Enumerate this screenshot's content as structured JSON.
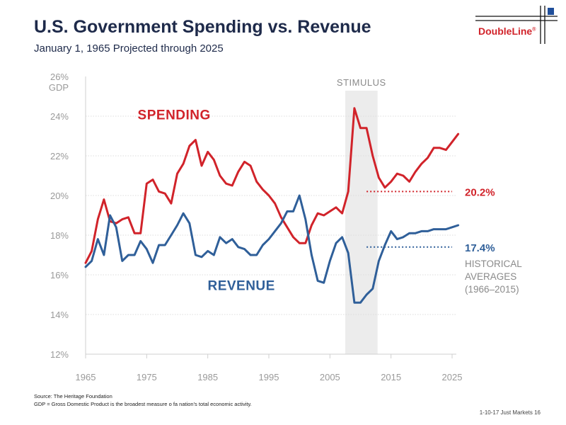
{
  "header": {
    "title": "U.S. Government Spending vs. Revenue",
    "subtitle": "January 1, 1965 Projected through 2025"
  },
  "logo": {
    "text": "DoubleLine",
    "mark": "®"
  },
  "footer": {
    "source": "Source: The Heritage Foundation",
    "gdp_note": "GDP = Gross Domestic Product is the broadest measure o fa nation's total economic activity.",
    "page_ref": "1-10-17 Just Markets  16"
  },
  "colors": {
    "spending": "#d1232a",
    "revenue": "#2f5f99",
    "axis_text": "#9a9a9a",
    "stimulus_band": "#ececec",
    "annotation_text": "#8a8a8a"
  },
  "chart_data": {
    "type": "line",
    "ylim": [
      12,
      26
    ],
    "xlim": [
      1965,
      2026
    ],
    "y_unit_label": "GDP",
    "y_ticks": [
      "26%",
      "24%",
      "22%",
      "20%",
      "18%",
      "16%",
      "14%",
      "12%"
    ],
    "x_ticks": [
      "1965",
      "1975",
      "1985",
      "1995",
      "2005",
      "2015",
      "2025"
    ],
    "grid": "horizontal",
    "series": [
      {
        "name": "SPENDING",
        "values": [
          [
            1965,
            16.6
          ],
          [
            1966,
            17.2
          ],
          [
            1967,
            18.8
          ],
          [
            1968,
            19.8
          ],
          [
            1969,
            18.7
          ],
          [
            1970,
            18.6
          ],
          [
            1971,
            18.8
          ],
          [
            1972,
            18.9
          ],
          [
            1973,
            18.1
          ],
          [
            1974,
            18.1
          ],
          [
            1975,
            20.6
          ],
          [
            1976,
            20.8
          ],
          [
            1977,
            20.2
          ],
          [
            1978,
            20.1
          ],
          [
            1979,
            19.6
          ],
          [
            1980,
            21.1
          ],
          [
            1981,
            21.6
          ],
          [
            1982,
            22.5
          ],
          [
            1983,
            22.8
          ],
          [
            1984,
            21.5
          ],
          [
            1985,
            22.2
          ],
          [
            1986,
            21.8
          ],
          [
            1987,
            21.0
          ],
          [
            1988,
            20.6
          ],
          [
            1989,
            20.5
          ],
          [
            1990,
            21.2
          ],
          [
            1991,
            21.7
          ],
          [
            1992,
            21.5
          ],
          [
            1993,
            20.7
          ],
          [
            1994,
            20.3
          ],
          [
            1995,
            20.0
          ],
          [
            1996,
            19.6
          ],
          [
            1997,
            18.9
          ],
          [
            1998,
            18.4
          ],
          [
            1999,
            17.9
          ],
          [
            2000,
            17.6
          ],
          [
            2001,
            17.6
          ],
          [
            2002,
            18.5
          ],
          [
            2003,
            19.1
          ],
          [
            2004,
            19.0
          ],
          [
            2005,
            19.2
          ],
          [
            2006,
            19.4
          ],
          [
            2007,
            19.1
          ],
          [
            2008,
            20.2
          ],
          [
            2009,
            24.4
          ],
          [
            2010,
            23.4
          ],
          [
            2011,
            23.4
          ],
          [
            2012,
            22.0
          ],
          [
            2013,
            20.9
          ],
          [
            2014,
            20.4
          ],
          [
            2015,
            20.7
          ],
          [
            2016,
            21.1
          ],
          [
            2017,
            21.0
          ],
          [
            2018,
            20.7
          ],
          [
            2019,
            21.2
          ],
          [
            2020,
            21.6
          ],
          [
            2021,
            21.9
          ],
          [
            2022,
            22.4
          ],
          [
            2023,
            22.4
          ],
          [
            2024,
            22.3
          ],
          [
            2025,
            22.7
          ],
          [
            2026,
            23.1
          ]
        ]
      },
      {
        "name": "REVENUE",
        "values": [
          [
            1965,
            16.4
          ],
          [
            1966,
            16.7
          ],
          [
            1967,
            17.8
          ],
          [
            1968,
            17.0
          ],
          [
            1969,
            19.0
          ],
          [
            1970,
            18.4
          ],
          [
            1971,
            16.7
          ],
          [
            1972,
            17.0
          ],
          [
            1973,
            17.0
          ],
          [
            1974,
            17.7
          ],
          [
            1975,
            17.3
          ],
          [
            1976,
            16.6
          ],
          [
            1977,
            17.5
          ],
          [
            1978,
            17.5
          ],
          [
            1979,
            18.0
          ],
          [
            1980,
            18.5
          ],
          [
            1981,
            19.1
          ],
          [
            1982,
            18.6
          ],
          [
            1983,
            17.0
          ],
          [
            1984,
            16.9
          ],
          [
            1985,
            17.2
          ],
          [
            1986,
            17.0
          ],
          [
            1987,
            17.9
          ],
          [
            1988,
            17.6
          ],
          [
            1989,
            17.8
          ],
          [
            1990,
            17.4
          ],
          [
            1991,
            17.3
          ],
          [
            1992,
            17.0
          ],
          [
            1993,
            17.0
          ],
          [
            1994,
            17.5
          ],
          [
            1995,
            17.8
          ],
          [
            1996,
            18.2
          ],
          [
            1997,
            18.6
          ],
          [
            1998,
            19.2
          ],
          [
            1999,
            19.2
          ],
          [
            2000,
            20.0
          ],
          [
            2001,
            18.8
          ],
          [
            2002,
            17.0
          ],
          [
            2003,
            15.7
          ],
          [
            2004,
            15.6
          ],
          [
            2005,
            16.7
          ],
          [
            2006,
            17.6
          ],
          [
            2007,
            17.9
          ],
          [
            2008,
            17.1
          ],
          [
            2009,
            14.6
          ],
          [
            2010,
            14.6
          ],
          [
            2011,
            15.0
          ],
          [
            2012,
            15.3
          ],
          [
            2013,
            16.7
          ],
          [
            2014,
            17.5
          ],
          [
            2015,
            18.2
          ],
          [
            2016,
            17.8
          ],
          [
            2017,
            17.9
          ],
          [
            2018,
            18.1
          ],
          [
            2019,
            18.1
          ],
          [
            2020,
            18.2
          ],
          [
            2021,
            18.2
          ],
          [
            2022,
            18.3
          ],
          [
            2023,
            18.3
          ],
          [
            2024,
            18.3
          ],
          [
            2025,
            18.4
          ],
          [
            2026,
            18.5
          ]
        ]
      }
    ],
    "stimulus": {
      "label": "STIMULUS",
      "from": 2007.5,
      "to": 2012.8
    },
    "historical_averages": {
      "label_lines": [
        "HISTORICAL",
        "AVERAGES",
        "(1966–2015)"
      ],
      "spending": {
        "value": 20.2,
        "label": "20.2%",
        "from": 2011,
        "to": 2025
      },
      "revenue": {
        "value": 17.4,
        "label": "17.4%",
        "from": 2011,
        "to": 2025
      }
    },
    "series_labels": {
      "spending": "SPENDING",
      "revenue": "REVENUE"
    }
  }
}
